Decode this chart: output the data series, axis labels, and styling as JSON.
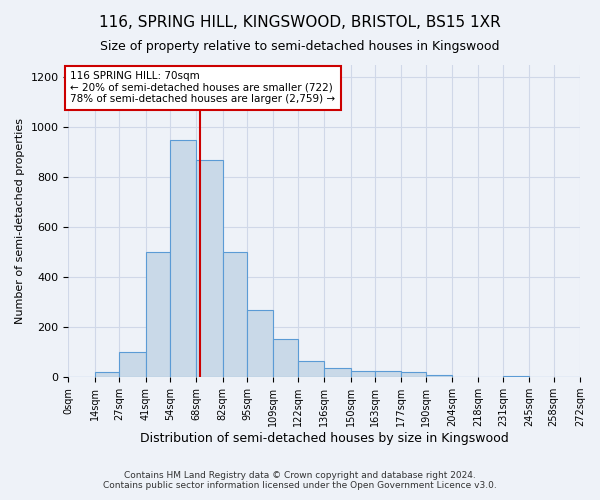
{
  "title": "116, SPRING HILL, KINGSWOOD, BRISTOL, BS15 1XR",
  "subtitle": "Size of property relative to semi-detached houses in Kingswood",
  "xlabel": "Distribution of semi-detached houses by size in Kingswood",
  "ylabel": "Number of semi-detached properties",
  "footer_line1": "Contains HM Land Registry data © Crown copyright and database right 2024.",
  "footer_line2": "Contains public sector information licensed under the Open Government Licence v3.0.",
  "annotation_title": "116 SPRING HILL: 70sqm",
  "annotation_line1": "← 20% of semi-detached houses are smaller (722)",
  "annotation_line2": "78% of semi-detached houses are larger (2,759) →",
  "property_size": 70,
  "bin_edges": [
    0,
    14,
    27,
    41,
    54,
    68,
    82,
    95,
    109,
    122,
    136,
    150,
    163,
    177,
    190,
    204,
    218,
    231,
    245,
    258,
    272
  ],
  "bin_counts": [
    0,
    20,
    100,
    500,
    950,
    870,
    500,
    270,
    155,
    65,
    35,
    25,
    25,
    20,
    10,
    0,
    0,
    5,
    0,
    0
  ],
  "bar_color": "#c9d9e8",
  "bar_edge_color": "#5b9bd5",
  "red_line_color": "#cc0000",
  "annotation_box_color": "#cc0000",
  "grid_color": "#d0d8e8",
  "background_color": "#eef2f8",
  "ylim": [
    0,
    1250
  ],
  "yticks": [
    0,
    200,
    400,
    600,
    800,
    1000,
    1200
  ]
}
